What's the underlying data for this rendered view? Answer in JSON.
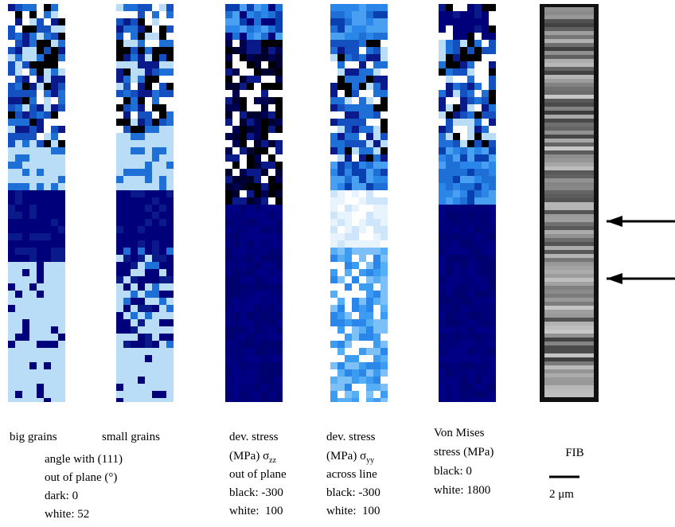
{
  "panels": [
    {
      "label": "big grains"
    },
    {
      "label": "small grains"
    }
  ],
  "grain_caption": [
    "angle with (111)",
    "out of plane (°)",
    "dark: 0",
    "white: 52"
  ],
  "zz_caption": {
    "line1": "dev. stress",
    "line2": {
      "text": "(MPa) σ",
      "sub": "zz"
    },
    "lines": [
      "out of plane",
      "black: -300",
      "white:  100"
    ]
  },
  "yy_caption": {
    "line1": "dev. stress",
    "line2": {
      "text": "(MPa) σ",
      "sub": "yy"
    },
    "lines": [
      "across line",
      "black: -300",
      "white:  100"
    ]
  },
  "mises_caption": [
    "Von Mises",
    "stress (MPa)",
    "black: 0",
    "white: 1800"
  ],
  "fib": {
    "label": "FIB",
    "scale": "2 μm"
  }
}
